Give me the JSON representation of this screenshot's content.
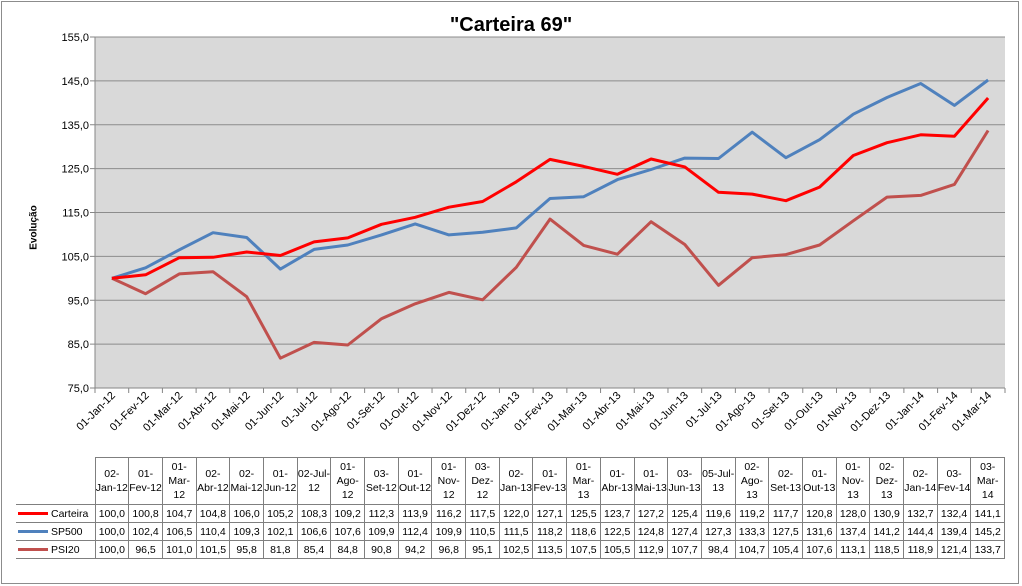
{
  "chart_data": {
    "type": "line",
    "title": "\"Carteira 69\"",
    "ylabel": "Evolução",
    "ylim": [
      75,
      155
    ],
    "yticks": [
      "75,0",
      "85,0",
      "95,0",
      "105,0",
      "115,0",
      "125,0",
      "135,0",
      "145,0",
      "155,0"
    ],
    "grid": true,
    "legend": "table",
    "x": [
      "01-Jan-12",
      "01-Fev-12",
      "01-Mar-12",
      "01-Abr-12",
      "01-Mai-12",
      "01-Jun-12",
      "01-Jul-12",
      "01-Ago-12",
      "01-Set-12",
      "01-Out-12",
      "01-Nov-12",
      "01-Dez-12",
      "01-Jan-13",
      "01-Fev-13",
      "01-Mar-13",
      "01-Abr-13",
      "01-Mai-13",
      "01-Jun-13",
      "01-Jul-13",
      "01-Ago-13",
      "01-Set-13",
      "01-Out-13",
      "01-Nov-13",
      "01-Dez-13",
      "01-Jan-14",
      "01-Fev-14",
      "01-Mar-14"
    ],
    "table_headers": [
      "02-Jan-12",
      "01-Fev-12",
      "01-Mar-12",
      "02-Abr-12",
      "02-Mai-12",
      "01-Jun-12",
      "02-Jul-12",
      "01-Ago-12",
      "03-Set-12",
      "01-Out-12",
      "01-Nov-12",
      "03-Dez-12",
      "02-Jan-13",
      "01-Fev-13",
      "01-Mar-13",
      "01-Abr-13",
      "01-Mai-13",
      "03-Jun-13",
      "05-Jul-13",
      "02-Ago-13",
      "02-Set-13",
      "01-Out-13",
      "01-Nov-13",
      "02-Dez-13",
      "02-Jan-14",
      "03-Fev-14",
      "03-Mar-14"
    ],
    "series": [
      {
        "name": "Carteira",
        "color": "#ff0000",
        "values": [
          "100,0",
          "100,8",
          "104,7",
          "104,8",
          "106,0",
          "105,2",
          "108,3",
          "109,2",
          "112,3",
          "113,9",
          "116,2",
          "117,5",
          "122,0",
          "127,1",
          "125,5",
          "123,7",
          "127,2",
          "125,4",
          "119,6",
          "119,2",
          "117,7",
          "120,8",
          "128,0",
          "130,9",
          "132,7",
          "132,4",
          "141,1"
        ]
      },
      {
        "name": "SP500",
        "color": "#4f81bd",
        "values": [
          "100,0",
          "102,4",
          "106,5",
          "110,4",
          "109,3",
          "102,1",
          "106,6",
          "107,6",
          "109,9",
          "112,4",
          "109,9",
          "110,5",
          "111,5",
          "118,2",
          "118,6",
          "122,5",
          "124,8",
          "127,4",
          "127,3",
          "133,3",
          "127,5",
          "131,6",
          "137,4",
          "141,2",
          "144,4",
          "139,4",
          "145,2"
        ]
      },
      {
        "name": "PSI20",
        "color": "#c0504d",
        "values": [
          "100,0",
          "96,5",
          "101,0",
          "101,5",
          "95,8",
          "81,8",
          "85,4",
          "84,8",
          "90,8",
          "94,2",
          "96,8",
          "95,1",
          "102,5",
          "113,5",
          "107,5",
          "105,5",
          "112,9",
          "107,7",
          "98,4",
          "104,7",
          "105,4",
          "107,6",
          "113,1",
          "118,5",
          "118,9",
          "121,4",
          "133,7"
        ]
      }
    ]
  }
}
